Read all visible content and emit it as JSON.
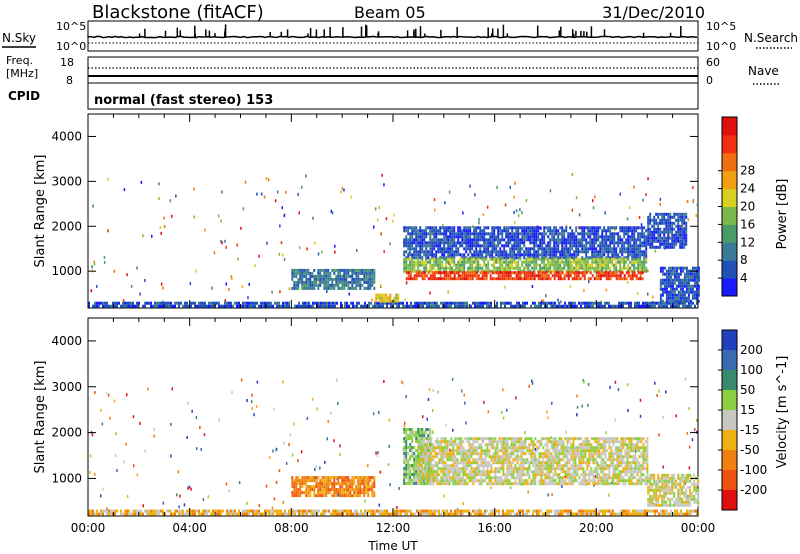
{
  "header": {
    "station": "Blackstone (fitACF)",
    "beam": "Beam 05",
    "date": "31/Dec/2010"
  },
  "top_strip": {
    "nsky_label": "N.Sky",
    "nsearch_label": "N.Search",
    "left_ticks": [
      "10^5",
      "10^0"
    ],
    "right_ticks": [
      "10^5",
      "10^0"
    ],
    "freq_label_1": "Freq.",
    "freq_label_2": "[MHz]",
    "freq_ticks": [
      "18",
      "8"
    ],
    "nave_label": "Nave",
    "nave_ticks": [
      "60",
      "0"
    ],
    "cpid_label": "CPID",
    "cpid_value": "normal (fast stereo) 153"
  },
  "chart_data": [
    {
      "type": "heatmap",
      "name": "power-panel",
      "ylabel": "Slant Range [km]",
      "ylim": [
        180,
        4500
      ],
      "yticks": [
        "1000",
        "2000",
        "3000",
        "4000"
      ],
      "xlim": [
        0,
        24
      ],
      "colorbar": {
        "label": "Power [dB]",
        "ticks": [
          "4",
          "8",
          "12",
          "16",
          "20",
          "24",
          "28"
        ],
        "colors": [
          "#1a1aff",
          "#2050b8",
          "#3a7a96",
          "#4a9a6a",
          "#7aba4a",
          "#d8d020",
          "#f0a010",
          "#f07010",
          "#f03010",
          "#e01010"
        ]
      },
      "regions": [
        {
          "t0": 0.0,
          "t1": 24.0,
          "r0": 200,
          "r1": 320,
          "level": 1
        },
        {
          "t0": 8.0,
          "t1": 11.3,
          "r0": 600,
          "r1": 1050,
          "level": 2
        },
        {
          "t0": 11.3,
          "t1": 12.2,
          "r0": 300,
          "r1": 500,
          "level": 5
        },
        {
          "t0": 12.4,
          "t1": 22.0,
          "r0": 1300,
          "r1": 2000,
          "level": 1
        },
        {
          "t0": 12.4,
          "t1": 22.0,
          "r0": 1000,
          "r1": 1300,
          "level": 4
        },
        {
          "t0": 12.5,
          "t1": 21.8,
          "r0": 800,
          "r1": 1000,
          "level": 8
        },
        {
          "t0": 22.0,
          "t1": 23.5,
          "r0": 1500,
          "r1": 2300,
          "level": 1
        },
        {
          "t0": 22.5,
          "t1": 24.0,
          "r0": 300,
          "r1": 1100,
          "level": 1
        }
      ]
    },
    {
      "type": "heatmap",
      "name": "velocity-panel",
      "ylabel": "Slant Range [km]",
      "xlabel": "Time UT",
      "ylim": [
        180,
        4500
      ],
      "yticks": [
        "1000",
        "2000",
        "3000",
        "4000"
      ],
      "xlim": [
        0,
        24
      ],
      "xticks": [
        "00:00",
        "04:00",
        "08:00",
        "12:00",
        "16:00",
        "20:00",
        "00:00"
      ],
      "colorbar": {
        "label": "Velocity [m s^-1]",
        "ticks": [
          "200",
          "100",
          "50",
          "15",
          "-15",
          "-50",
          "-100",
          "-200"
        ],
        "colors": [
          "#2040c0",
          "#3a6ab0",
          "#3a8a70",
          "#8ad040",
          "#c8c8c0",
          "#f0b010",
          "#f08010",
          "#f05010",
          "#e01010"
        ]
      },
      "regions": [
        {
          "t0": 0.0,
          "t1": 24.0,
          "r0": 200,
          "r1": 320,
          "level": 5
        },
        {
          "t0": 8.0,
          "t1": 11.3,
          "r0": 600,
          "r1": 1050,
          "level": 6
        },
        {
          "t0": 12.4,
          "t1": 13.5,
          "r0": 900,
          "r1": 2100,
          "level": 3
        },
        {
          "t0": 13.0,
          "t1": 22.0,
          "r0": 900,
          "r1": 1900,
          "level": 4
        },
        {
          "t0": 22.0,
          "t1": 24.0,
          "r0": 400,
          "r1": 1100,
          "level": 4
        }
      ]
    }
  ]
}
